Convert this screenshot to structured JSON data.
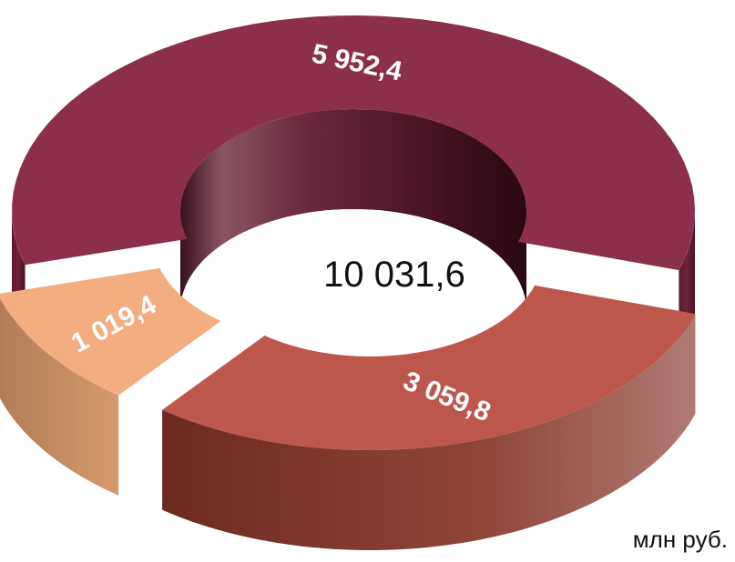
{
  "chart_data": {
    "type": "pie",
    "style": "3d-donut",
    "total": "10 031,6",
    "unit": "млн руб.",
    "slices": [
      {
        "label": "5 952,4",
        "value": 5952.4,
        "color": "#8b2f4b"
      },
      {
        "label": "3 059,8",
        "value": 3059.8,
        "color": "#bd574b"
      },
      {
        "label": "1 019,4",
        "value": 1019.4,
        "color": "#f2ad80"
      }
    ]
  }
}
